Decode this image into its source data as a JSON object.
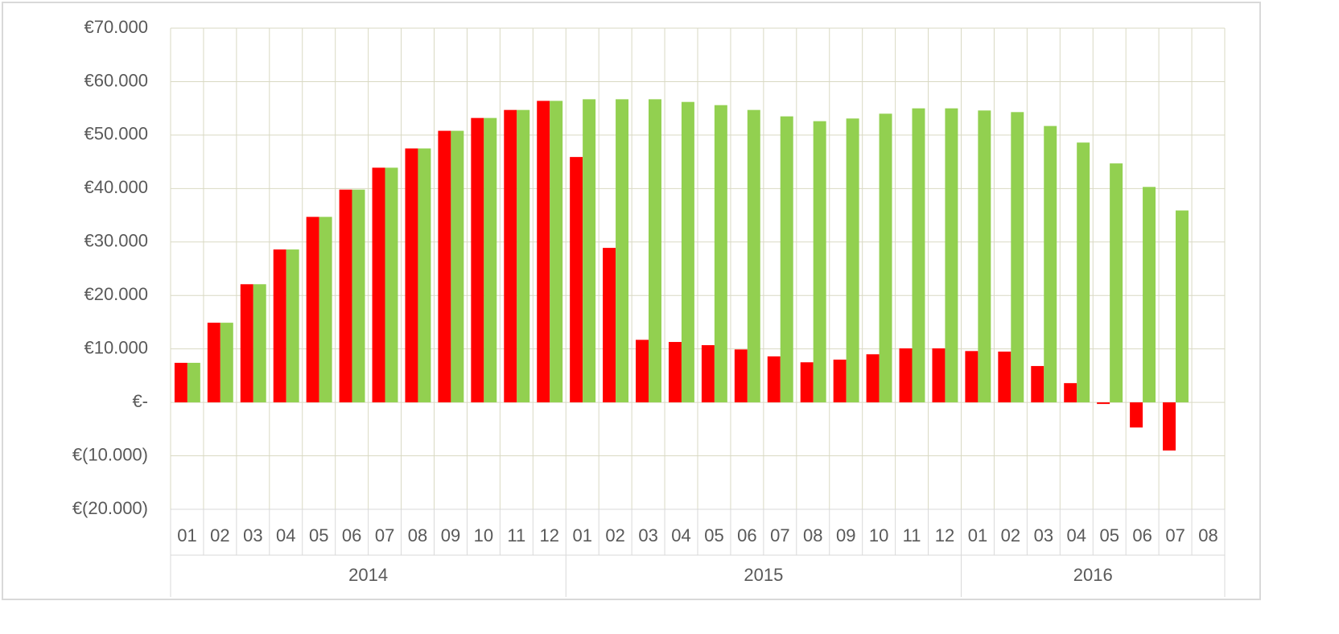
{
  "chart_data": {
    "type": "bar",
    "categories": [
      "01",
      "02",
      "03",
      "04",
      "05",
      "06",
      "07",
      "08",
      "09",
      "10",
      "11",
      "12",
      "01",
      "02",
      "03",
      "04",
      "05",
      "06",
      "07",
      "08",
      "09",
      "10",
      "11",
      "12",
      "01",
      "02",
      "03",
      "04",
      "05",
      "06",
      "07",
      "08"
    ],
    "groups": [
      "2014",
      "2015",
      "2016"
    ],
    "series": [
      {
        "color": "#ff0000",
        "values": [
          7400,
          14900,
          22100,
          28600,
          34700,
          39800,
          43900,
          47500,
          50800,
          53200,
          54700,
          56400,
          45900,
          28900,
          11700,
          11300,
          10700,
          9900,
          8600,
          7500,
          8000,
          9000,
          10100,
          10100,
          9600,
          9500,
          6800,
          3600,
          -300,
          -4700,
          -9000,
          null
        ]
      },
      {
        "color": "#92d050",
        "values": [
          7400,
          14900,
          22100,
          28600,
          34700,
          39800,
          43900,
          47500,
          50800,
          53200,
          54700,
          56400,
          56700,
          56700,
          56700,
          56200,
          55600,
          54700,
          53500,
          52600,
          53100,
          54000,
          55000,
          55000,
          54600,
          54300,
          51700,
          48600,
          44700,
          40300,
          35900,
          null
        ]
      }
    ],
    "ylim": [
      -20000,
      70000
    ],
    "yticks": [
      {
        "value": -20000,
        "label": "€(20.000)"
      },
      {
        "value": -10000,
        "label": "€(10.000)"
      },
      {
        "value": 0,
        "label": "€-"
      },
      {
        "value": 10000,
        "label": "€10.000"
      },
      {
        "value": 20000,
        "label": "€20.000"
      },
      {
        "value": 30000,
        "label": "€30.000"
      },
      {
        "value": 40000,
        "label": "€40.000"
      },
      {
        "value": 50000,
        "label": "€50.000"
      },
      {
        "value": 60000,
        "label": "€60.000"
      },
      {
        "value": 70000,
        "label": "€70.000"
      }
    ],
    "grid": true
  }
}
